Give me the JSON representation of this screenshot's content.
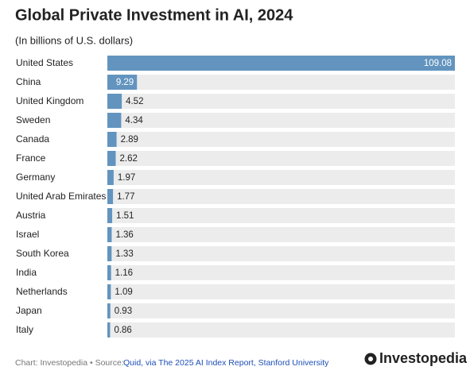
{
  "chart_data": {
    "type": "bar",
    "orientation": "horizontal",
    "title": "Global Private Investment in AI, 2024",
    "subtitle": "(In billions of U.S. dollars)",
    "categories": [
      "United States",
      "China",
      "United Kingdom",
      "Sweden",
      "Canada",
      "France",
      "Germany",
      "United Arab Emirates",
      "Austria",
      "Israel",
      "South Korea",
      "India",
      "Netherlands",
      "Japan",
      "Italy"
    ],
    "values": [
      109.08,
      9.29,
      4.52,
      4.34,
      2.89,
      2.62,
      1.97,
      1.77,
      1.51,
      1.36,
      1.33,
      1.16,
      1.09,
      0.93,
      0.86
    ],
    "color": "#6294bf",
    "xlim": [
      0,
      109.08
    ],
    "credit": "Chart: Investopedia • Source:",
    "source": "Quid, via The 2025 AI Index Report, Stanford University",
    "brand": "Investopedia"
  }
}
